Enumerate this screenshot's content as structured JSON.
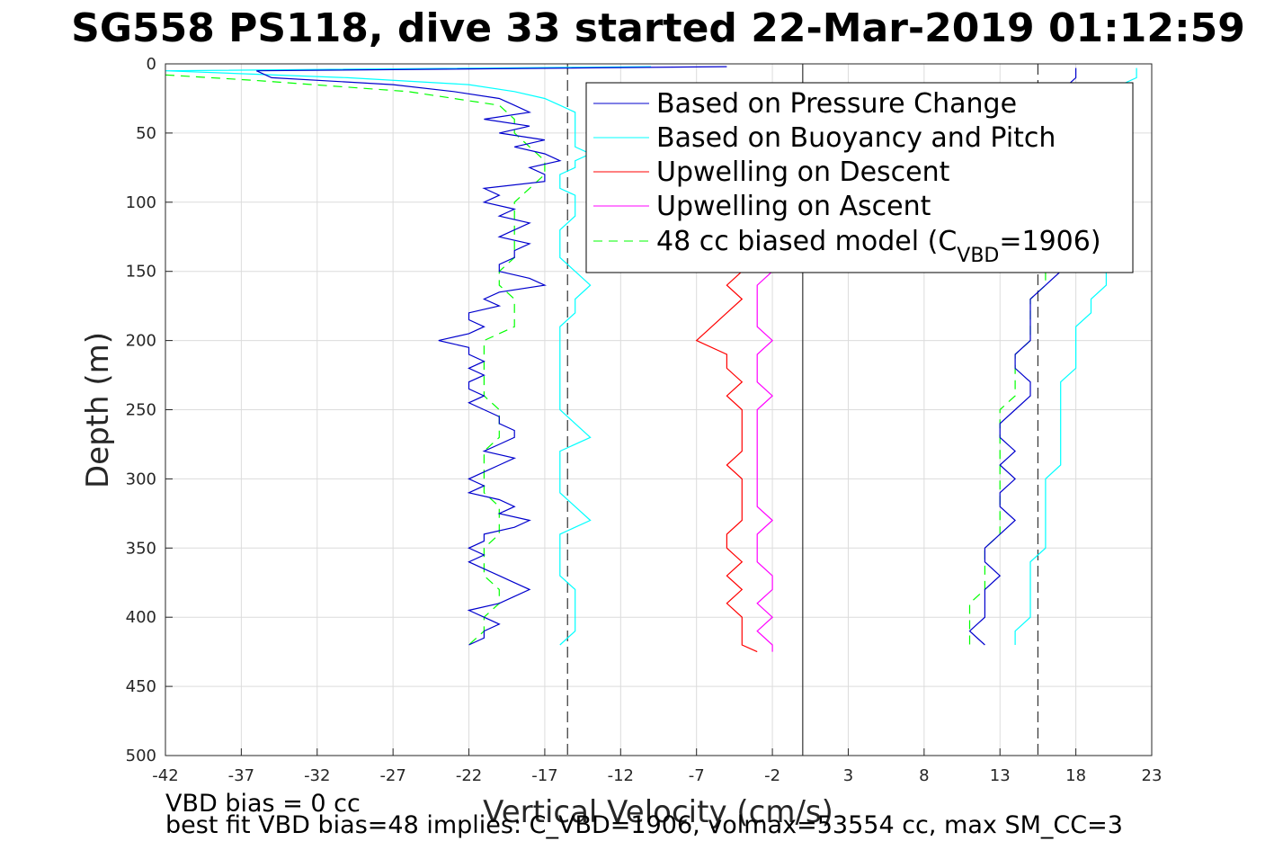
{
  "title": "SG558 PS118, dive 33 started 22-Mar-2019 01:12:59",
  "xlabel": "Vertical Velocity (cm/s)",
  "ylabel": "Depth (m)",
  "notes": [
    "VBD bias = 0 cc",
    "best fit VBD bias=48 implies: C_VBD=1906, volmax=53554 cc, max SM_CC=3"
  ],
  "legend": [
    {
      "id": "press",
      "label": "Based on Pressure Change"
    },
    {
      "id": "buoy",
      "label": "Based on Buoyancy and Pitch"
    },
    {
      "id": "updesc",
      "label": "Upwelling on Descent"
    },
    {
      "id": "upasc",
      "label": "Upwelling on Ascent"
    },
    {
      "id": "model",
      "label_main": "48 cc biased model (C",
      "label_sub": "VBD",
      "label_tail": "=1906)"
    }
  ],
  "colors": {
    "press": "#0000cd",
    "buoy": "#00ffff",
    "updesc": "#ff0000",
    "upasc": "#ff00ff",
    "model": "#00ff00",
    "grid": "#dcdcdc",
    "refline": "#333333"
  },
  "chart_data": {
    "type": "line",
    "title": "SG558 PS118, dive 33 started 22-Mar-2019 01:12:59",
    "xlabel": "Vertical Velocity (cm/s)",
    "ylabel": "Depth (m)",
    "xlim": [
      -42,
      23
    ],
    "ylim": [
      0,
      500
    ],
    "y_reversed": true,
    "xticks": [
      -42,
      -37,
      -32,
      -27,
      -22,
      -17,
      -12,
      -7,
      -2,
      3,
      8,
      13,
      18,
      23
    ],
    "yticks": [
      0,
      50,
      100,
      150,
      200,
      250,
      300,
      350,
      400,
      450,
      500
    ],
    "grid": true,
    "legend_position": "top-right",
    "reference_lines": {
      "dashed_x": [
        -15.5,
        15.5
      ],
      "solid_x": [
        0
      ]
    },
    "series": [
      {
        "id": "press",
        "name": "Based on Pressure Change",
        "descent": {
          "depth": [
            2,
            5,
            10,
            15,
            20,
            25,
            30,
            35,
            40,
            45,
            50,
            55,
            60,
            65,
            70,
            75,
            80,
            85,
            90,
            95,
            100,
            105,
            110,
            115,
            120,
            125,
            130,
            135,
            140,
            145,
            150,
            155,
            160,
            165,
            170,
            175,
            180,
            185,
            190,
            195,
            200,
            205,
            210,
            215,
            220,
            225,
            230,
            235,
            240,
            245,
            250,
            255,
            260,
            265,
            270,
            275,
            280,
            285,
            290,
            295,
            300,
            305,
            310,
            315,
            320,
            325,
            330,
            335,
            340,
            345,
            350,
            355,
            360,
            365,
            370,
            375,
            380,
            385,
            390,
            395,
            400,
            405,
            410,
            415,
            420
          ],
          "velocity": [
            -5,
            -36,
            -35,
            -27,
            -23,
            -20,
            -19,
            -18,
            -21,
            -18,
            -20,
            -17,
            -19,
            -17,
            -16,
            -18,
            -17,
            -17,
            -21,
            -20,
            -21,
            -19,
            -20,
            -18,
            -19,
            -20,
            -18,
            -19,
            -19,
            -20,
            -20,
            -18,
            -17,
            -20,
            -21,
            -20,
            -22,
            -22,
            -21,
            -22,
            -24,
            -22,
            -22,
            -21,
            -22,
            -21,
            -22,
            -22,
            -21,
            -22,
            -21,
            -20,
            -20,
            -19,
            -19,
            -20,
            -21,
            -19,
            -20,
            -21,
            -22,
            -21,
            -22,
            -20,
            -19,
            -20,
            -18,
            -19,
            -21,
            -21,
            -22,
            -21,
            -22,
            -21,
            -20,
            -19,
            -18,
            -19,
            -20,
            -22,
            -21,
            -20,
            -21,
            -21,
            -22
          ]
        },
        "ascent": {
          "depth": [
            3,
            10,
            20,
            30,
            40,
            50,
            60,
            70,
            80,
            90,
            100,
            110,
            120,
            130,
            140,
            150,
            160,
            170,
            180,
            190,
            200,
            210,
            220,
            230,
            240,
            250,
            260,
            270,
            280,
            290,
            300,
            310,
            320,
            330,
            340,
            350,
            360,
            370,
            380,
            390,
            400,
            410,
            420
          ],
          "velocity": [
            18,
            18,
            17,
            16,
            16,
            16,
            16,
            16,
            16,
            16,
            16,
            16,
            16,
            17,
            17,
            17,
            16,
            15,
            15,
            15,
            15,
            14,
            14,
            15,
            15,
            14,
            13,
            13,
            14,
            13,
            14,
            13,
            13,
            14,
            13,
            12,
            12,
            13,
            12,
            12,
            12,
            11,
            12
          ]
        }
      },
      {
        "id": "buoy",
        "name": "Based on Buoyancy and Pitch",
        "descent": {
          "depth": [
            2,
            5,
            10,
            15,
            20,
            25,
            30,
            35,
            40,
            45,
            50,
            55,
            60,
            65,
            70,
            75,
            80,
            85,
            90,
            95,
            100,
            110,
            120,
            130,
            140,
            150,
            160,
            170,
            180,
            190,
            200,
            210,
            220,
            230,
            240,
            250,
            260,
            270,
            280,
            290,
            300,
            310,
            320,
            330,
            340,
            350,
            360,
            370,
            380,
            390,
            400,
            410,
            420
          ],
          "velocity": [
            -10,
            -42,
            -30,
            -22,
            -19,
            -17,
            -16,
            -15,
            -15,
            -15,
            -15,
            -15,
            -15,
            -14,
            -15,
            -15,
            -16,
            -16,
            -16,
            -15,
            -15,
            -15,
            -16,
            -16,
            -16,
            -15,
            -14,
            -15,
            -15,
            -16,
            -16,
            -16,
            -16,
            -16,
            -16,
            -16,
            -15,
            -14,
            -16,
            -16,
            -16,
            -16,
            -15,
            -14,
            -16,
            -16,
            -16,
            -16,
            -15,
            -15,
            -15,
            -15,
            -16
          ]
        },
        "ascent": {
          "depth": [
            3,
            10,
            20,
            30,
            40,
            50,
            60,
            70,
            80,
            90,
            100,
            110,
            120,
            130,
            140,
            150,
            160,
            170,
            180,
            190,
            200,
            210,
            220,
            230,
            240,
            250,
            260,
            270,
            280,
            290,
            300,
            310,
            320,
            330,
            340,
            350,
            360,
            370,
            380,
            390,
            400,
            410,
            420
          ],
          "velocity": [
            22,
            22,
            20,
            19,
            19,
            19,
            19,
            19,
            19,
            19,
            19,
            19,
            19,
            20,
            20,
            20,
            20,
            19,
            19,
            18,
            18,
            18,
            18,
            17,
            17,
            17,
            17,
            17,
            17,
            17,
            16,
            16,
            16,
            16,
            16,
            16,
            15,
            15,
            15,
            15,
            15,
            14,
            14
          ]
        }
      },
      {
        "id": "updesc",
        "name": "Upwelling on Descent",
        "depth": [
          150,
          160,
          170,
          180,
          190,
          200,
          210,
          220,
          230,
          240,
          250,
          260,
          270,
          280,
          290,
          300,
          310,
          320,
          330,
          340,
          350,
          360,
          370,
          380,
          390,
          400,
          410,
          420,
          425
        ],
        "velocity": [
          -4,
          -5,
          -4,
          -5,
          -6,
          -7,
          -5,
          -5,
          -4,
          -5,
          -4,
          -4,
          -4,
          -4,
          -5,
          -4,
          -4,
          -4,
          -4,
          -5,
          -5,
          -4,
          -5,
          -4,
          -5,
          -4,
          -4,
          -4,
          -3
        ]
      },
      {
        "id": "upasc",
        "name": "Upwelling on Ascent",
        "depth": [
          150,
          160,
          170,
          180,
          190,
          200,
          210,
          220,
          230,
          240,
          250,
          260,
          270,
          280,
          290,
          300,
          310,
          320,
          330,
          340,
          350,
          360,
          370,
          380,
          390,
          400,
          410,
          420,
          425
        ],
        "velocity": [
          -2,
          -3,
          -3,
          -3,
          -3,
          -2,
          -3,
          -3,
          -3,
          -2,
          -3,
          -3,
          -3,
          -3,
          -3,
          -3,
          -3,
          -3,
          -2,
          -3,
          -3,
          -3,
          -2,
          -2,
          -3,
          -2,
          -3,
          -2,
          -2
        ]
      },
      {
        "id": "model",
        "name": "48 cc biased model (C_VBD=1906)",
        "descent": {
          "depth": [
            8,
            12,
            20,
            30,
            40,
            50,
            60,
            70,
            80,
            90,
            100,
            110,
            120,
            130,
            140,
            150,
            160,
            170,
            180,
            190,
            200,
            210,
            220,
            230,
            240,
            250,
            260,
            270,
            280,
            290,
            300,
            310,
            320,
            330,
            340,
            350,
            360,
            370,
            380,
            390,
            400,
            410,
            420
          ],
          "velocity": [
            -42,
            -36,
            -26,
            -20,
            -19,
            -19,
            -18,
            -17,
            -17,
            -18,
            -19,
            -19,
            -19,
            -19,
            -19,
            -20,
            -20,
            -19,
            -19,
            -19,
            -21,
            -21,
            -21,
            -21,
            -21,
            -20,
            -20,
            -20,
            -21,
            -21,
            -21,
            -21,
            -20,
            -20,
            -20,
            -21,
            -21,
            -21,
            -20,
            -20,
            -21,
            -21,
            -22
          ]
        },
        "ascent": {
          "depth": [
            150,
            160,
            170,
            180,
            190,
            200,
            210,
            220,
            230,
            240,
            250,
            260,
            270,
            280,
            290,
            300,
            310,
            320,
            330,
            340,
            350,
            360,
            370,
            380,
            390,
            400,
            410,
            420
          ],
          "velocity": [
            16,
            16,
            15,
            15,
            15,
            15,
            14,
            14,
            14,
            14,
            13,
            13,
            13,
            13,
            13,
            13,
            13,
            13,
            13,
            13,
            12,
            12,
            12,
            12,
            11,
            11,
            11,
            11
          ]
        }
      }
    ]
  }
}
